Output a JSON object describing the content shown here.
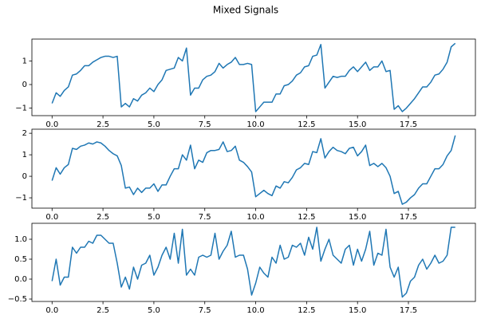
{
  "title": "Mixed Signals",
  "chart_data": [
    {
      "type": "line",
      "x": [
        0,
        0.2,
        0.4,
        0.6,
        0.8,
        1,
        1.2,
        1.4,
        1.6,
        1.8,
        2,
        2.2,
        2.4,
        2.6,
        2.8,
        3,
        3.2,
        3.4,
        3.6,
        3.8,
        4,
        4.2,
        4.4,
        4.6,
        4.8,
        5,
        5.2,
        5.4,
        5.6,
        5.8,
        6,
        6.2,
        6.4,
        6.6,
        6.8,
        7,
        7.2,
        7.4,
        7.6,
        7.8,
        8,
        8.2,
        8.4,
        8.6,
        8.8,
        9,
        9.2,
        9.4,
        9.6,
        9.8,
        10,
        10.2,
        10.4,
        10.6,
        10.8,
        11,
        11.2,
        11.4,
        11.6,
        11.8,
        12,
        12.2,
        12.4,
        12.6,
        12.8,
        13,
        13.2,
        13.4,
        13.6,
        13.8,
        14,
        14.2,
        14.4,
        14.6,
        14.8,
        15,
        15.2,
        15.4,
        15.6,
        15.8,
        16,
        16.2,
        16.4,
        16.6,
        16.8,
        17,
        17.2,
        17.4,
        17.6,
        17.8,
        18,
        18.2,
        18.4,
        18.6,
        18.8,
        19,
        19.2,
        19.4,
        19.6,
        19.8
      ],
      "series": [
        {
          "color": "#1f77b4",
          "values": [
            -0.8,
            -0.35,
            -0.5,
            -0.25,
            -0.1,
            0.4,
            0.45,
            0.6,
            0.8,
            0.8,
            0.95,
            1.05,
            1.15,
            1.2,
            1.2,
            1.15,
            1.2,
            -0.95,
            -0.8,
            -0.95,
            -0.6,
            -0.7,
            -0.45,
            -0.35,
            -0.15,
            -0.3,
            0.0,
            0.2,
            0.6,
            0.65,
            0.7,
            1.15,
            1.0,
            1.55,
            -0.45,
            -0.15,
            -0.15,
            0.2,
            0.35,
            0.4,
            0.55,
            0.9,
            0.7,
            0.85,
            0.95,
            1.15,
            0.85,
            0.85,
            0.9,
            0.85,
            -1.15,
            -0.95,
            -0.75,
            -0.75,
            -0.75,
            -0.4,
            -0.4,
            -0.05,
            0.0,
            0.15,
            0.4,
            0.5,
            0.75,
            0.8,
            1.2,
            1.25,
            1.7,
            -0.15,
            0.1,
            0.35,
            0.3,
            0.35,
            0.35,
            0.6,
            0.75,
            0.55,
            0.75,
            0.95,
            0.6,
            0.75,
            0.75,
            1.0,
            0.55,
            0.6,
            -1.05,
            -0.9,
            -1.15,
            -1.0,
            -0.8,
            -0.6,
            -0.35,
            -0.1,
            -0.1,
            0.1,
            0.4,
            0.45,
            0.65,
            0.95,
            1.6,
            1.75
          ]
        }
      ],
      "xlim": [
        -0.99,
        20.79
      ],
      "xticks": [
        {
          "value": 0,
          "label": "0.0"
        },
        2.5,
        {
          "value": 5,
          "label": "5.0"
        },
        7.5,
        {
          "value": 10,
          "label": "10.0"
        },
        12.5,
        {
          "value": 15,
          "label": "15.0"
        },
        17.5
      ],
      "ylim": [
        -1.32,
        1.93
      ],
      "yticks": [
        {
          "value": -1,
          "label": "−1"
        },
        0,
        1
      ]
    },
    {
      "type": "line",
      "x": [
        0,
        0.2,
        0.4,
        0.6,
        0.8,
        1,
        1.2,
        1.4,
        1.6,
        1.8,
        2,
        2.2,
        2.4,
        2.6,
        2.8,
        3,
        3.2,
        3.4,
        3.6,
        3.8,
        4,
        4.2,
        4.4,
        4.6,
        4.8,
        5,
        5.2,
        5.4,
        5.6,
        5.8,
        6,
        6.2,
        6.4,
        6.6,
        6.8,
        7,
        7.2,
        7.4,
        7.6,
        7.8,
        8,
        8.2,
        8.4,
        8.6,
        8.8,
        9,
        9.2,
        9.4,
        9.6,
        9.8,
        10,
        10.2,
        10.4,
        10.6,
        10.8,
        11,
        11.2,
        11.4,
        11.6,
        11.8,
        12,
        12.2,
        12.4,
        12.6,
        12.8,
        13,
        13.2,
        13.4,
        13.6,
        13.8,
        14,
        14.2,
        14.4,
        14.6,
        14.8,
        15,
        15.2,
        15.4,
        15.6,
        15.8,
        16,
        16.2,
        16.4,
        16.6,
        16.8,
        17,
        17.2,
        17.4,
        17.6,
        17.8,
        18,
        18.2,
        18.4,
        18.6,
        18.8,
        19,
        19.2,
        19.4,
        19.6,
        19.8
      ],
      "series": [
        {
          "color": "#1f77b4",
          "values": [
            -0.2,
            0.4,
            0.1,
            0.4,
            0.55,
            1.3,
            1.25,
            1.4,
            1.45,
            1.55,
            1.5,
            1.6,
            1.55,
            1.4,
            1.2,
            1.05,
            0.95,
            0.5,
            -0.55,
            -0.5,
            -0.85,
            -0.55,
            -0.75,
            -0.55,
            -0.55,
            -0.35,
            -0.7,
            -0.4,
            -0.4,
            0.0,
            0.35,
            0.35,
            1.0,
            0.75,
            1.45,
            0.35,
            0.75,
            0.65,
            1.1,
            1.2,
            1.2,
            1.25,
            1.6,
            1.15,
            1.2,
            1.4,
            0.75,
            0.65,
            0.45,
            0.2,
            -0.95,
            -0.8,
            -0.65,
            -0.8,
            -0.9,
            -0.45,
            -0.55,
            -0.25,
            -0.3,
            -0.05,
            0.3,
            0.4,
            0.6,
            0.55,
            1.15,
            1.1,
            1.75,
            0.85,
            1.15,
            1.35,
            1.2,
            1.15,
            1.05,
            1.3,
            1.35,
            0.95,
            1.15,
            1.45,
            0.5,
            0.6,
            0.45,
            0.6,
            0.4,
            0.0,
            -0.8,
            -0.7,
            -1.3,
            -1.2,
            -1.0,
            -0.85,
            -0.55,
            -0.35,
            -0.35,
            0.0,
            0.35,
            0.35,
            0.55,
            0.95,
            1.2,
            1.9
          ]
        }
      ],
      "xlim": [
        -0.99,
        20.79
      ],
      "xticks": [
        {
          "value": 0,
          "label": "0.0"
        },
        2.5,
        {
          "value": 5,
          "label": "5.0"
        },
        7.5,
        {
          "value": 10,
          "label": "10.0"
        },
        12.5,
        {
          "value": 15,
          "label": "15.0"
        },
        17.5
      ],
      "ylim": [
        -1.48,
        2.19
      ],
      "yticks": [
        {
          "value": -1,
          "label": "−1"
        },
        0,
        1,
        2
      ]
    },
    {
      "type": "line",
      "x": [
        0,
        0.2,
        0.4,
        0.6,
        0.8,
        1,
        1.2,
        1.4,
        1.6,
        1.8,
        2,
        2.2,
        2.4,
        2.6,
        2.8,
        3,
        3.2,
        3.4,
        3.6,
        3.8,
        4,
        4.2,
        4.4,
        4.6,
        4.8,
        5,
        5.2,
        5.4,
        5.6,
        5.8,
        6,
        6.2,
        6.4,
        6.6,
        6.8,
        7,
        7.2,
        7.4,
        7.6,
        7.8,
        8,
        8.2,
        8.4,
        8.6,
        8.8,
        9,
        9.2,
        9.4,
        9.6,
        9.8,
        10,
        10.2,
        10.4,
        10.6,
        10.8,
        11,
        11.2,
        11.4,
        11.6,
        11.8,
        12,
        12.2,
        12.4,
        12.6,
        12.8,
        13,
        13.2,
        13.4,
        13.6,
        13.8,
        14,
        14.2,
        14.4,
        14.6,
        14.8,
        15,
        15.2,
        15.4,
        15.6,
        15.8,
        16,
        16.2,
        16.4,
        16.6,
        16.8,
        17,
        17.2,
        17.4,
        17.6,
        17.8,
        18,
        18.2,
        18.4,
        18.6,
        18.8,
        19,
        19.2,
        19.4,
        19.6,
        19.8
      ],
      "series": [
        {
          "color": "#1f77b4",
          "values": [
            -0.05,
            0.5,
            -0.15,
            0.05,
            0.05,
            0.8,
            0.65,
            0.8,
            0.8,
            0.95,
            0.9,
            1.1,
            1.1,
            1.0,
            0.9,
            0.9,
            0.4,
            -0.2,
            0.05,
            -0.25,
            0.3,
            0.0,
            0.35,
            0.4,
            0.6,
            0.1,
            0.3,
            0.6,
            0.8,
            0.5,
            1.15,
            0.4,
            1.25,
            0.1,
            0.25,
            0.1,
            0.55,
            0.6,
            0.55,
            0.6,
            1.15,
            0.5,
            0.7,
            0.85,
            1.2,
            0.55,
            0.6,
            0.6,
            0.25,
            -0.4,
            -0.1,
            0.3,
            0.15,
            0.05,
            0.55,
            0.4,
            0.85,
            0.5,
            0.55,
            0.85,
            0.8,
            0.9,
            0.6,
            1.05,
            0.75,
            1.3,
            0.45,
            0.75,
            1.0,
            0.6,
            0.5,
            0.4,
            0.75,
            0.85,
            0.35,
            0.75,
            0.45,
            0.75,
            1.2,
            0.35,
            0.65,
            0.6,
            1.25,
            0.3,
            0.05,
            0.3,
            -0.45,
            -0.35,
            -0.05,
            0.05,
            0.35,
            0.5,
            0.25,
            0.4,
            0.6,
            0.4,
            0.45,
            0.6,
            1.3,
            1.3
          ]
        }
      ],
      "xlim": [
        -0.99,
        20.79
      ],
      "xticks": [
        {
          "value": 0,
          "label": "0.0"
        },
        2.5,
        {
          "value": 5,
          "label": "5.0"
        },
        7.5,
        {
          "value": 10,
          "label": "10.0"
        },
        12.5,
        {
          "value": 15,
          "label": "15.0"
        },
        17.5
      ],
      "ylim": [
        -0.56,
        1.4
      ],
      "yticks": [
        {
          "value": -0.5,
          "label": "−0.5"
        },
        {
          "value": 0,
          "label": "0.0"
        },
        0.5,
        {
          "value": 1,
          "label": "1.0"
        }
      ]
    }
  ]
}
